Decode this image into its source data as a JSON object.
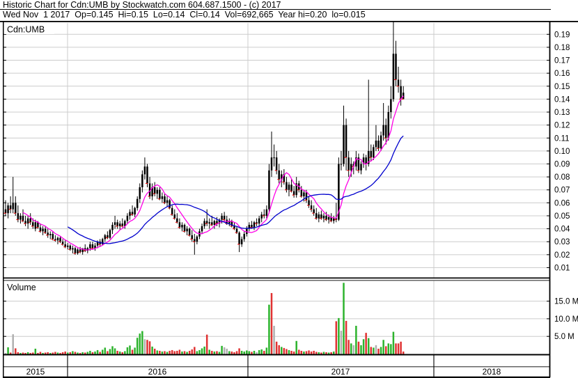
{
  "header": {
    "title_line": "Historic Chart for Cdn:UMB by Stockwatch.com 604.687.1500 - (c) 2017",
    "quote_line": "Wed Nov  1 2017  Op=0.145  Hi=0.15  Lo=0.14  Cl=0.14  Vol=692,665  Year hi=0.20  lo=0.015"
  },
  "chart_data": {
    "type": "candlestick",
    "title": "Historic Chart for Cdn:UMB",
    "symbol_label": "Cdn:UMB",
    "volume_label": "Volume",
    "price_axis": {
      "side": "right",
      "ticks": [
        0.19,
        0.18,
        0.17,
        0.16,
        0.15,
        0.14,
        0.13,
        0.12,
        0.11,
        0.1,
        0.09,
        0.08,
        0.07,
        0.06,
        0.05,
        0.04,
        0.03,
        0.02,
        0.01
      ],
      "min": 0.002,
      "max": 0.199,
      "grid": true
    },
    "volume_axis": {
      "side": "right",
      "ticks": [
        {
          "value": 15,
          "label": "15.0 M"
        },
        {
          "value": 10,
          "label": "10.0 M"
        },
        {
          "value": 5,
          "label": "5.0 M"
        }
      ],
      "unit": "millions",
      "grid": true
    },
    "x_axis": {
      "years": [
        {
          "label": "2015",
          "center": 51
        },
        {
          "label": "2016",
          "center": 226
        },
        {
          "label": "2017",
          "center": 489
        },
        {
          "label": "2018",
          "center": 706
        }
      ],
      "boundaries": [
        97,
        356,
        623
      ]
    },
    "series": [
      {
        "name": "price",
        "style": "ohlc-candle",
        "color": "#000000",
        "down_close_tick_color": "#ee0000"
      },
      {
        "name": "ma-fast",
        "style": "line",
        "period": 8,
        "color": "#ff00e6"
      },
      {
        "name": "ma-slow",
        "style": "line",
        "period": 26,
        "color": "#0000cd"
      }
    ],
    "volume_colors": {
      "up": "#2db32d",
      "down": "#e03232",
      "flat": "#b0b0b0"
    },
    "grid_color": "#cccccc",
    "candles_format": [
      "open",
      "high",
      "low",
      "close",
      "volume_millions",
      "volume_color_key"
    ],
    "candles": [
      [
        0.055,
        0.062,
        0.05,
        0.052,
        0.3,
        "n"
      ],
      [
        0.052,
        0.06,
        0.048,
        0.058,
        1.9,
        "g"
      ],
      [
        0.058,
        0.065,
        0.052,
        0.055,
        0.4,
        "r"
      ],
      [
        0.055,
        0.08,
        0.052,
        0.06,
        5.6,
        "n"
      ],
      [
        0.06,
        0.065,
        0.05,
        0.052,
        1.6,
        "r"
      ],
      [
        0.052,
        0.058,
        0.045,
        0.047,
        0.5,
        "r"
      ],
      [
        0.047,
        0.052,
        0.044,
        0.05,
        0.3,
        "g"
      ],
      [
        0.05,
        0.055,
        0.045,
        0.046,
        0.4,
        "r"
      ],
      [
        0.046,
        0.05,
        0.042,
        0.044,
        0.3,
        "r"
      ],
      [
        0.044,
        0.05,
        0.04,
        0.048,
        0.5,
        "g"
      ],
      [
        0.048,
        0.052,
        0.043,
        0.045,
        0.3,
        "r"
      ],
      [
        0.045,
        0.048,
        0.04,
        0.042,
        0.4,
        "r"
      ],
      [
        0.04,
        0.047,
        0.038,
        0.045,
        1.5,
        "g"
      ],
      [
        0.045,
        0.046,
        0.04,
        0.041,
        0.3,
        "r"
      ],
      [
        0.041,
        0.044,
        0.037,
        0.038,
        0.6,
        "r"
      ],
      [
        0.038,
        0.042,
        0.035,
        0.04,
        0.3,
        "g"
      ],
      [
        0.04,
        0.042,
        0.036,
        0.037,
        0.4,
        "r"
      ],
      [
        0.037,
        0.04,
        0.033,
        0.035,
        0.5,
        "r"
      ],
      [
        0.035,
        0.038,
        0.032,
        0.036,
        0.3,
        "g"
      ],
      [
        0.036,
        0.038,
        0.031,
        0.032,
        0.4,
        "r"
      ],
      [
        0.032,
        0.035,
        0.03,
        0.031,
        0.6,
        "r"
      ],
      [
        0.031,
        0.034,
        0.028,
        0.033,
        0.4,
        "g"
      ],
      [
        0.033,
        0.034,
        0.029,
        0.03,
        0.3,
        "r"
      ],
      [
        0.03,
        0.032,
        0.027,
        0.028,
        0.5,
        "r"
      ],
      [
        0.028,
        0.031,
        0.025,
        0.026,
        0.7,
        "r"
      ],
      [
        0.026,
        0.029,
        0.024,
        0.027,
        0.4,
        "g"
      ],
      [
        0.027,
        0.028,
        0.023,
        0.024,
        0.5,
        "r"
      ],
      [
        0.024,
        0.027,
        0.021,
        0.025,
        0.8,
        "g"
      ],
      [
        0.025,
        0.026,
        0.02,
        0.021,
        0.6,
        "r"
      ],
      [
        0.021,
        0.025,
        0.02,
        0.024,
        0.4,
        "g"
      ],
      [
        0.024,
        0.026,
        0.021,
        0.022,
        0.3,
        "r"
      ],
      [
        0.022,
        0.025,
        0.02,
        0.025,
        0.5,
        "g"
      ],
      [
        0.025,
        0.028,
        0.022,
        0.023,
        0.4,
        "r"
      ],
      [
        0.023,
        0.026,
        0.021,
        0.025,
        0.6,
        "g"
      ],
      [
        0.025,
        0.03,
        0.023,
        0.028,
        0.9,
        "g"
      ],
      [
        0.028,
        0.03,
        0.024,
        0.025,
        0.5,
        "r"
      ],
      [
        0.025,
        0.029,
        0.023,
        0.027,
        0.7,
        "g"
      ],
      [
        0.027,
        0.031,
        0.025,
        0.03,
        1.1,
        "g"
      ],
      [
        0.03,
        0.032,
        0.026,
        0.028,
        0.6,
        "r"
      ],
      [
        0.028,
        0.033,
        0.027,
        0.032,
        1.2,
        "g"
      ],
      [
        0.032,
        0.036,
        0.03,
        0.035,
        1.8,
        "g"
      ],
      [
        0.035,
        0.038,
        0.032,
        0.033,
        0.8,
        "r"
      ],
      [
        0.033,
        0.04,
        0.032,
        0.039,
        1.4,
        "g"
      ],
      [
        0.039,
        0.045,
        0.036,
        0.043,
        2.2,
        "g"
      ],
      [
        0.043,
        0.05,
        0.04,
        0.045,
        1.6,
        "g"
      ],
      [
        0.045,
        0.047,
        0.04,
        0.042,
        0.9,
        "r"
      ],
      [
        0.042,
        0.046,
        0.039,
        0.044,
        0.7,
        "g"
      ],
      [
        0.044,
        0.048,
        0.041,
        0.042,
        0.5,
        "r"
      ],
      [
        0.042,
        0.047,
        0.04,
        0.046,
        0.8,
        "g"
      ],
      [
        0.046,
        0.052,
        0.044,
        0.05,
        1.9,
        "g"
      ],
      [
        0.05,
        0.055,
        0.047,
        0.053,
        2.4,
        "g"
      ],
      [
        0.053,
        0.058,
        0.05,
        0.051,
        1.2,
        "r"
      ],
      [
        0.051,
        0.057,
        0.049,
        0.056,
        1.8,
        "g"
      ],
      [
        0.056,
        0.065,
        0.054,
        0.063,
        4.6,
        "g"
      ],
      [
        0.063,
        0.075,
        0.06,
        0.072,
        5.8,
        "g"
      ],
      [
        0.072,
        0.085,
        0.068,
        0.082,
        6.5,
        "g"
      ],
      [
        0.082,
        0.095,
        0.078,
        0.088,
        4.2,
        "n"
      ],
      [
        0.088,
        0.09,
        0.072,
        0.075,
        4.0,
        "r"
      ],
      [
        0.075,
        0.08,
        0.063,
        0.065,
        3.6,
        "r"
      ],
      [
        0.065,
        0.075,
        0.062,
        0.072,
        2.1,
        "g"
      ],
      [
        0.072,
        0.076,
        0.065,
        0.067,
        1.5,
        "r"
      ],
      [
        0.067,
        0.072,
        0.063,
        0.07,
        1.0,
        "g"
      ],
      [
        0.07,
        0.072,
        0.062,
        0.063,
        0.9,
        "r"
      ],
      [
        0.063,
        0.068,
        0.06,
        0.065,
        0.7,
        "g"
      ],
      [
        0.065,
        0.067,
        0.059,
        0.06,
        0.8,
        "r"
      ],
      [
        0.06,
        0.065,
        0.057,
        0.062,
        0.6,
        "g"
      ],
      [
        0.062,
        0.063,
        0.055,
        0.056,
        0.9,
        "r"
      ],
      [
        0.056,
        0.058,
        0.05,
        0.051,
        1.1,
        "r"
      ],
      [
        0.051,
        0.055,
        0.047,
        0.048,
        0.8,
        "r"
      ],
      [
        0.048,
        0.052,
        0.044,
        0.045,
        0.9,
        "r"
      ],
      [
        0.045,
        0.048,
        0.04,
        0.041,
        1.2,
        "r"
      ],
      [
        0.041,
        0.045,
        0.038,
        0.043,
        0.7,
        "g"
      ],
      [
        0.043,
        0.044,
        0.037,
        0.038,
        0.8,
        "r"
      ],
      [
        0.038,
        0.042,
        0.035,
        0.04,
        0.6,
        "g"
      ],
      [
        0.04,
        0.041,
        0.034,
        0.035,
        0.9,
        "r"
      ],
      [
        0.035,
        0.039,
        0.03,
        0.032,
        1.3,
        "r"
      ],
      [
        0.032,
        0.036,
        0.02,
        0.03,
        2.0,
        "r"
      ],
      [
        0.03,
        0.035,
        0.028,
        0.034,
        0.8,
        "g"
      ],
      [
        0.034,
        0.04,
        0.032,
        0.038,
        1.1,
        "g"
      ],
      [
        0.038,
        0.044,
        0.036,
        0.042,
        1.6,
        "g"
      ],
      [
        0.042,
        0.048,
        0.04,
        0.046,
        2.1,
        "g"
      ],
      [
        0.046,
        0.055,
        0.042,
        0.044,
        5.5,
        "r"
      ],
      [
        0.044,
        0.048,
        0.04,
        0.045,
        1.2,
        "g"
      ],
      [
        0.045,
        0.05,
        0.042,
        0.043,
        0.9,
        "r"
      ],
      [
        0.043,
        0.047,
        0.04,
        0.046,
        0.7,
        "g"
      ],
      [
        0.046,
        0.049,
        0.042,
        0.044,
        0.8,
        "r"
      ],
      [
        0.044,
        0.048,
        0.041,
        0.047,
        0.6,
        "g"
      ],
      [
        0.047,
        0.052,
        0.044,
        0.05,
        2.3,
        "g"
      ],
      [
        0.05,
        0.053,
        0.046,
        0.047,
        1.9,
        "n"
      ],
      [
        0.047,
        0.05,
        0.043,
        0.044,
        1.5,
        "n"
      ],
      [
        0.044,
        0.048,
        0.042,
        0.046,
        0.8,
        "g"
      ],
      [
        0.046,
        0.047,
        0.041,
        0.042,
        0.7,
        "r"
      ],
      [
        0.042,
        0.045,
        0.039,
        0.04,
        0.5,
        "r"
      ],
      [
        0.04,
        0.042,
        0.036,
        0.037,
        0.8,
        "r"
      ],
      [
        0.037,
        0.038,
        0.022,
        0.028,
        1.6,
        "r"
      ],
      [
        0.028,
        0.034,
        0.026,
        0.032,
        0.9,
        "g"
      ],
      [
        0.032,
        0.038,
        0.03,
        0.036,
        0.7,
        "g"
      ],
      [
        0.036,
        0.042,
        0.034,
        0.04,
        1.0,
        "g"
      ],
      [
        0.04,
        0.045,
        0.038,
        0.043,
        0.8,
        "g"
      ],
      [
        0.043,
        0.046,
        0.04,
        0.041,
        0.6,
        "r"
      ],
      [
        0.041,
        0.046,
        0.039,
        0.045,
        0.9,
        "g"
      ],
      [
        0.045,
        0.048,
        0.042,
        0.044,
        0.5,
        "n"
      ],
      [
        0.044,
        0.05,
        0.042,
        0.048,
        1.1,
        "g"
      ],
      [
        0.048,
        0.053,
        0.045,
        0.051,
        1.3,
        "g"
      ],
      [
        0.051,
        0.055,
        0.048,
        0.05,
        0.9,
        "r"
      ],
      [
        0.05,
        0.058,
        0.048,
        0.055,
        1.8,
        "g"
      ],
      [
        0.055,
        0.09,
        0.052,
        0.085,
        14.0,
        "g"
      ],
      [
        0.085,
        0.115,
        0.08,
        0.095,
        17.3,
        "r"
      ],
      [
        0.095,
        0.105,
        0.088,
        0.095,
        8.0,
        "n"
      ],
      [
        0.095,
        0.1,
        0.082,
        0.085,
        3.5,
        "r"
      ],
      [
        0.085,
        0.09,
        0.075,
        0.078,
        2.5,
        "r"
      ],
      [
        0.078,
        0.085,
        0.072,
        0.082,
        2.0,
        "g"
      ],
      [
        0.082,
        0.086,
        0.074,
        0.076,
        1.7,
        "r"
      ],
      [
        0.076,
        0.08,
        0.068,
        0.07,
        1.4,
        "r"
      ],
      [
        0.07,
        0.076,
        0.065,
        0.074,
        1.1,
        "g"
      ],
      [
        0.074,
        0.078,
        0.068,
        0.069,
        0.9,
        "r"
      ],
      [
        0.069,
        0.073,
        0.064,
        0.066,
        0.7,
        "r"
      ],
      [
        0.066,
        0.08,
        0.064,
        0.075,
        3.7,
        "g"
      ],
      [
        0.075,
        0.077,
        0.068,
        0.07,
        1.2,
        "r"
      ],
      [
        0.07,
        0.073,
        0.064,
        0.065,
        0.9,
        "r"
      ],
      [
        0.065,
        0.07,
        0.061,
        0.068,
        0.7,
        "g"
      ],
      [
        0.068,
        0.07,
        0.06,
        0.062,
        0.8,
        "r"
      ],
      [
        0.062,
        0.065,
        0.056,
        0.058,
        1.0,
        "r"
      ],
      [
        0.058,
        0.062,
        0.053,
        0.055,
        0.7,
        "r"
      ],
      [
        0.055,
        0.058,
        0.05,
        0.052,
        0.9,
        "r"
      ],
      [
        0.052,
        0.056,
        0.047,
        0.048,
        0.6,
        "r"
      ],
      [
        0.048,
        0.053,
        0.045,
        0.051,
        0.5,
        "g"
      ],
      [
        0.051,
        0.054,
        0.047,
        0.048,
        0.4,
        "r"
      ],
      [
        0.048,
        0.052,
        0.045,
        0.05,
        0.6,
        "g"
      ],
      [
        0.05,
        0.053,
        0.046,
        0.047,
        0.5,
        "r"
      ],
      [
        0.047,
        0.051,
        0.044,
        0.049,
        0.4,
        "g"
      ],
      [
        0.049,
        0.052,
        0.045,
        0.046,
        0.5,
        "r"
      ],
      [
        0.046,
        0.05,
        0.044,
        0.048,
        0.7,
        "g"
      ],
      [
        0.048,
        0.06,
        0.045,
        0.047,
        9.3,
        "r"
      ],
      [
        0.047,
        0.095,
        0.046,
        0.09,
        10.2,
        "g"
      ],
      [
        0.09,
        0.1,
        0.085,
        0.09,
        6.6,
        "n"
      ],
      [
        0.09,
        0.135,
        0.088,
        0.12,
        20.2,
        "g"
      ],
      [
        0.12,
        0.125,
        0.085,
        0.095,
        9.4,
        "r"
      ],
      [
        0.095,
        0.1,
        0.08,
        0.085,
        4.0,
        "r"
      ],
      [
        0.085,
        0.095,
        0.08,
        0.09,
        3.0,
        "g"
      ],
      [
        0.09,
        0.092,
        0.082,
        0.088,
        2.5,
        "n"
      ],
      [
        0.088,
        0.1,
        0.085,
        0.095,
        8.0,
        "g"
      ],
      [
        0.095,
        0.098,
        0.083,
        0.085,
        3.5,
        "r"
      ],
      [
        0.085,
        0.092,
        0.082,
        0.09,
        2.5,
        "g"
      ],
      [
        0.09,
        0.098,
        0.087,
        0.095,
        4.2,
        "g"
      ],
      [
        0.095,
        0.097,
        0.085,
        0.09,
        6.0,
        "r"
      ],
      [
        0.09,
        0.155,
        0.088,
        0.1,
        4.5,
        "g"
      ],
      [
        0.1,
        0.105,
        0.092,
        0.095,
        2.0,
        "r"
      ],
      [
        0.095,
        0.105,
        0.093,
        0.103,
        1.8,
        "g"
      ],
      [
        0.103,
        0.12,
        0.1,
        0.108,
        2.5,
        "n"
      ],
      [
        0.108,
        0.112,
        0.1,
        0.102,
        1.5,
        "r"
      ],
      [
        0.102,
        0.115,
        0.1,
        0.112,
        2.0,
        "g"
      ],
      [
        0.112,
        0.137,
        0.108,
        0.12,
        4.0,
        "g"
      ],
      [
        0.12,
        0.125,
        0.105,
        0.11,
        2.2,
        "r"
      ],
      [
        0.11,
        0.135,
        0.108,
        0.13,
        3.0,
        "g"
      ],
      [
        0.13,
        0.15,
        0.125,
        0.14,
        2.8,
        "g"
      ],
      [
        0.14,
        0.2,
        0.138,
        0.175,
        6.3,
        "g"
      ],
      [
        0.175,
        0.185,
        0.15,
        0.155,
        3.0,
        "r"
      ],
      [
        0.155,
        0.165,
        0.145,
        0.15,
        3.0,
        "r"
      ],
      [
        0.15,
        0.155,
        0.135,
        0.14,
        3.5,
        "r"
      ],
      [
        0.145,
        0.15,
        0.14,
        0.14,
        0.7,
        "r"
      ]
    ]
  }
}
